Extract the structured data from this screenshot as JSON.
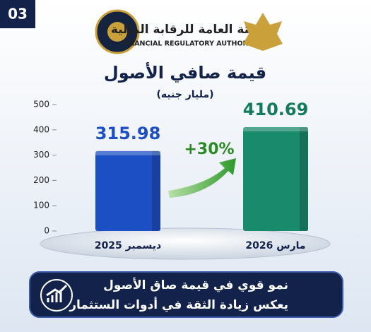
{
  "badge": "03",
  "header": {
    "arabic": "الهيئة العامة للرقابة المالية",
    "english": "FINANCIAL REGULATORY AUTHORITY"
  },
  "chart_data": {
    "type": "bar",
    "title": "قيمة صافي الأصول",
    "subtitle": "(مليار جنيه)",
    "categories": [
      "ديسمبر 2025",
      "مارس 2026"
    ],
    "values": [
      315.98,
      410.69
    ],
    "colors": [
      "#1d4fc4",
      "#1a8a6c"
    ],
    "value_label_colors": [
      "#1d4fc4",
      "#137a5c"
    ],
    "ylim": [
      0,
      500
    ],
    "yticks": [
      0,
      100,
      200,
      300,
      400,
      500
    ],
    "annotation": "+30%"
  },
  "footer": [
    "نمو قوي في قيمة صاق الأصول",
    "يعكس زيادة الثقة في أدوات الستثمار"
  ]
}
